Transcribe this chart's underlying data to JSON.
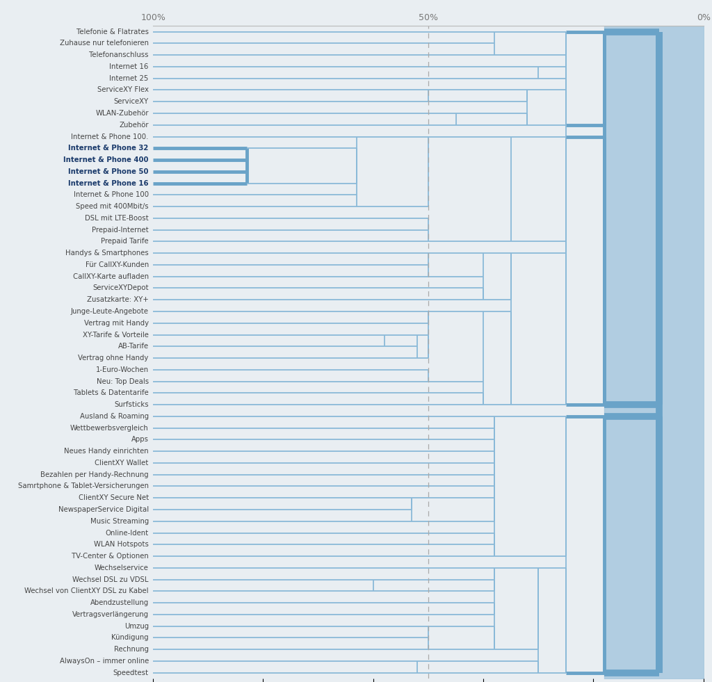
{
  "labels": [
    "Telefonie & Flatrates",
    "Zuhause nur telefonieren",
    "Telefonanschluss",
    "Internet 16",
    "Internet 25",
    "ServiceXY Flex",
    "ServiceXY",
    "WLAN-Zubehör",
    "Zubehör",
    "Internet & Phone 100.",
    "Internet & Phone 32",
    "Internet & Phone 400",
    "Internet & Phone 50",
    "Internet & Phone 16",
    "Internet & Phone 100",
    "Speed mit 400Mbit/s",
    "DSL mit LTE-Boost",
    "Prepaid-Internet",
    "Prepaid Tarife",
    "Handys & Smartphones",
    "Für CallXY-Kunden",
    "CallXY-Karte aufladen",
    "ServiceXYDepot",
    "Zusatzkarte: XY+",
    "Junge-Leute-Angebote",
    "Vertrag mit Handy",
    "XY-Tarife & Vorteile",
    "AB-Tarife",
    "Vertrag ohne Handy",
    "1-Euro-Wochen",
    "Neu: Top Deals",
    "Tablets & Datentarife",
    "Surfsticks",
    "Ausland & Roaming",
    "Wettbewerbsvergleich",
    "Apps",
    "Neues Handy einrichten",
    "ClientXY Wallet",
    "Bezahlen per Handy-Rechnung",
    "Samrtphone & Tablet-Versicherungen",
    "ClientXY Secure Net",
    "NewspaperService Digital",
    "Music Streaming",
    "Online-Ident",
    "WLAN Hotspots",
    "TV-Center & Optionen",
    "Wechselservice",
    "Wechsel DSL zu VDSL",
    "Wechsel von ClientXY DSL zu Kabel",
    "Abendzustellung",
    "Vertragsverlängerung",
    "Umzug",
    "Kündigung",
    "Rechnung",
    "AlwaysOn – immer online",
    "Speedtest"
  ],
  "bold_labels": [
    "Internet & Phone 32",
    "Internet & Phone 400",
    "Internet & Phone 50",
    "Internet & Phone 16"
  ],
  "bg_color": "#e9eef2",
  "line_color": "#8ab9d8",
  "line_color_thick": "#6aa3c8",
  "right_fill_color": "#a8c8de",
  "dashed_color": "#aaaaaa",
  "label_color": "#444444",
  "bold_label_color": "#1a3a6b",
  "axis_label_color": "#777777",
  "top_line_color": "#bbbbbb"
}
